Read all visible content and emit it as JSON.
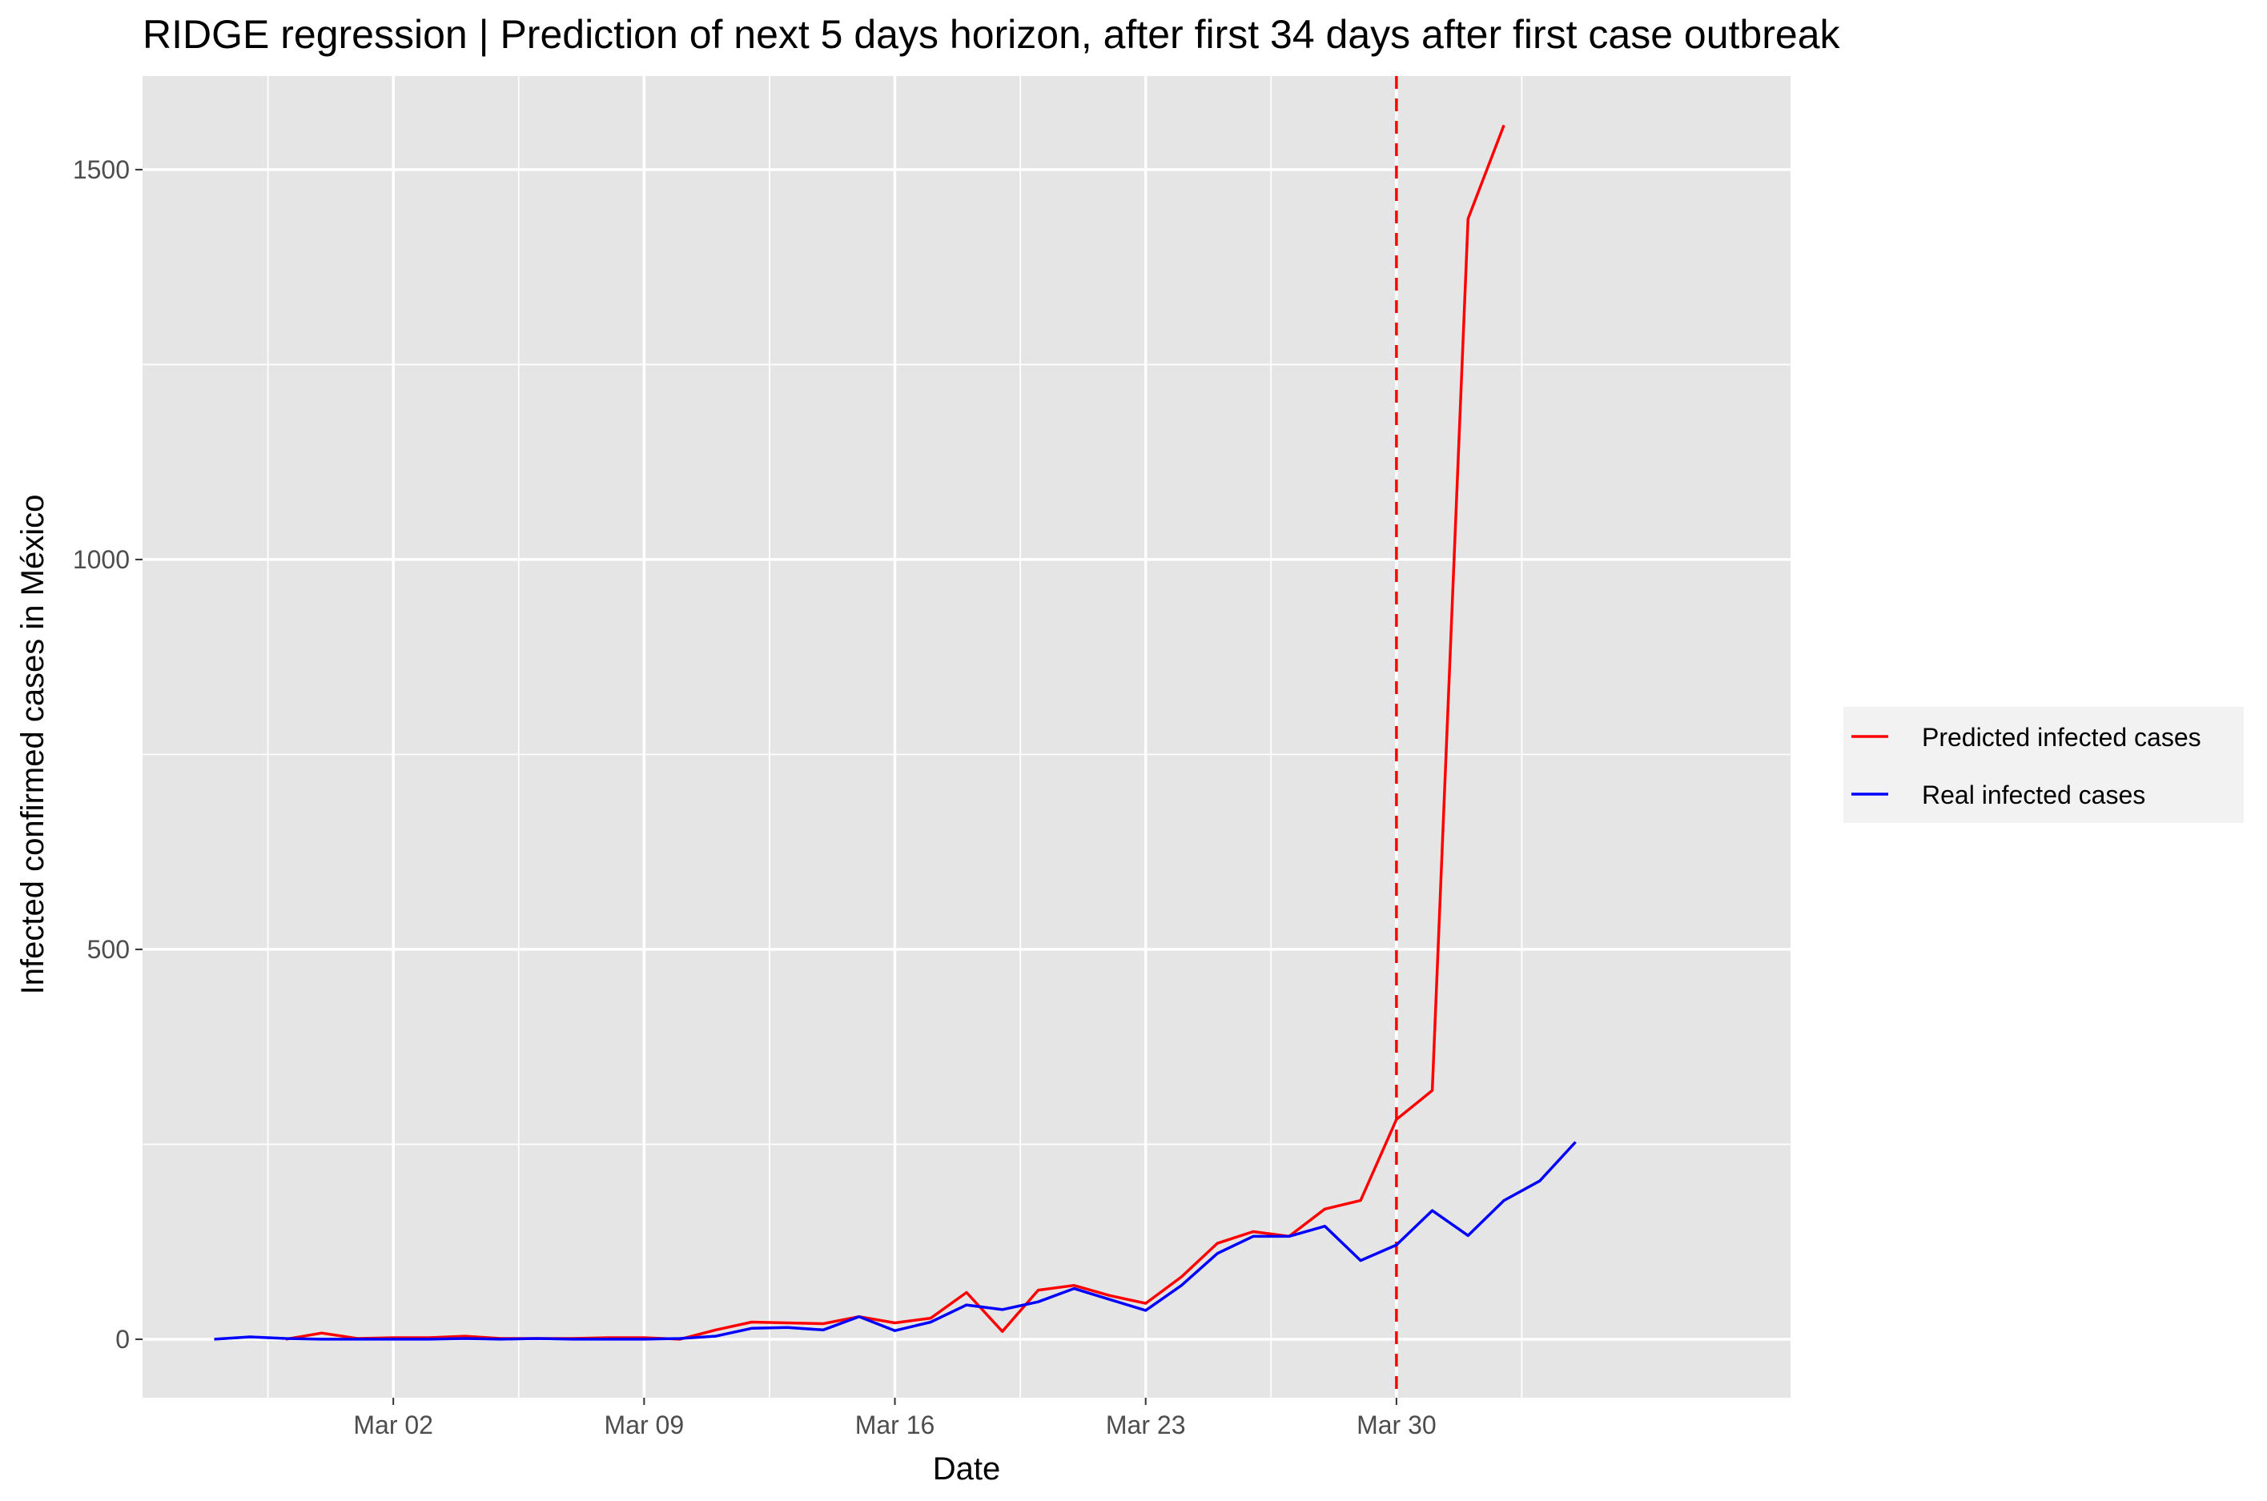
{
  "chart_data": {
    "type": "line",
    "title": "RIDGE regression | Prediction of next 5 days horizon, after first 34 days after first case outbreak",
    "xlabel": "Date",
    "ylabel": "Infected confirmed cases in México",
    "x_axis_type": "date",
    "xlim": [
      "2020-02-24",
      "2020-04-10"
    ],
    "ylim": [
      -75,
      1620
    ],
    "x_ticks": [
      {
        "value": "2020-03-02",
        "label": "Mar 02"
      },
      {
        "value": "2020-03-09",
        "label": "Mar 09"
      },
      {
        "value": "2020-03-16",
        "label": "Mar 16"
      },
      {
        "value": "2020-03-23",
        "label": "Mar 23"
      },
      {
        "value": "2020-03-30",
        "label": "Mar 30"
      }
    ],
    "y_ticks": [
      {
        "value": 0,
        "label": "0"
      },
      {
        "value": 500,
        "label": "500"
      },
      {
        "value": 1000,
        "label": "1000"
      },
      {
        "value": 1500,
        "label": "1500"
      }
    ],
    "grid": true,
    "background": "#e5e5e5",
    "legend_position": "right",
    "vline": {
      "x": "2020-03-30",
      "color": "#ff0000",
      "style": "dashed"
    },
    "series": [
      {
        "name": "Predicted infected cases",
        "color": "#ff0000",
        "x": [
          "2020-02-28",
          "2020-02-29",
          "2020-03-01",
          "2020-03-02",
          "2020-03-03",
          "2020-03-04",
          "2020-03-05",
          "2020-03-06",
          "2020-03-07",
          "2020-03-08",
          "2020-03-09",
          "2020-03-10",
          "2020-03-11",
          "2020-03-12",
          "2020-03-13",
          "2020-03-14",
          "2020-03-15",
          "2020-03-16",
          "2020-03-17",
          "2020-03-18",
          "2020-03-19",
          "2020-03-20",
          "2020-03-21",
          "2020-03-22",
          "2020-03-23",
          "2020-03-24",
          "2020-03-25",
          "2020-03-26",
          "2020-03-27",
          "2020-03-28",
          "2020-03-29",
          "2020-03-30",
          "2020-03-31",
          "2020-04-01",
          "2020-04-02",
          "2020-04-03"
        ],
        "values": [
          0,
          8,
          1,
          2,
          2,
          4,
          1,
          1,
          1,
          2,
          2,
          0,
          12,
          22,
          21,
          20,
          29,
          21,
          27,
          60,
          10,
          63,
          69,
          56,
          46,
          80,
          123,
          138,
          132,
          167,
          178,
          282,
          319,
          1437,
          1557,
          null
        ]
      },
      {
        "name": "Real infected cases",
        "color": "#0000ff",
        "x": [
          "2020-02-26",
          "2020-02-27",
          "2020-02-28",
          "2020-02-29",
          "2020-03-01",
          "2020-03-02",
          "2020-03-03",
          "2020-03-04",
          "2020-03-05",
          "2020-03-06",
          "2020-03-07",
          "2020-03-08",
          "2020-03-09",
          "2020-03-10",
          "2020-03-11",
          "2020-03-12",
          "2020-03-13",
          "2020-03-14",
          "2020-03-15",
          "2020-03-16",
          "2020-03-17",
          "2020-03-18",
          "2020-03-19",
          "2020-03-20",
          "2020-03-21",
          "2020-03-22",
          "2020-03-23",
          "2020-03-24",
          "2020-03-25",
          "2020-03-26",
          "2020-03-27",
          "2020-03-28",
          "2020-03-29",
          "2020-03-30",
          "2020-03-31",
          "2020-04-01",
          "2020-04-02",
          "2020-04-03",
          "2020-04-04"
        ],
        "values": [
          0,
          3,
          1,
          0,
          0,
          0,
          0,
          1,
          0,
          1,
          0,
          0,
          0,
          1,
          4,
          14,
          15,
          12,
          29,
          11,
          22,
          44,
          38,
          48,
          65,
          51,
          37,
          69,
          110,
          132,
          132,
          145,
          101,
          121,
          165,
          133,
          178,
          203,
          253
        ]
      }
    ]
  }
}
